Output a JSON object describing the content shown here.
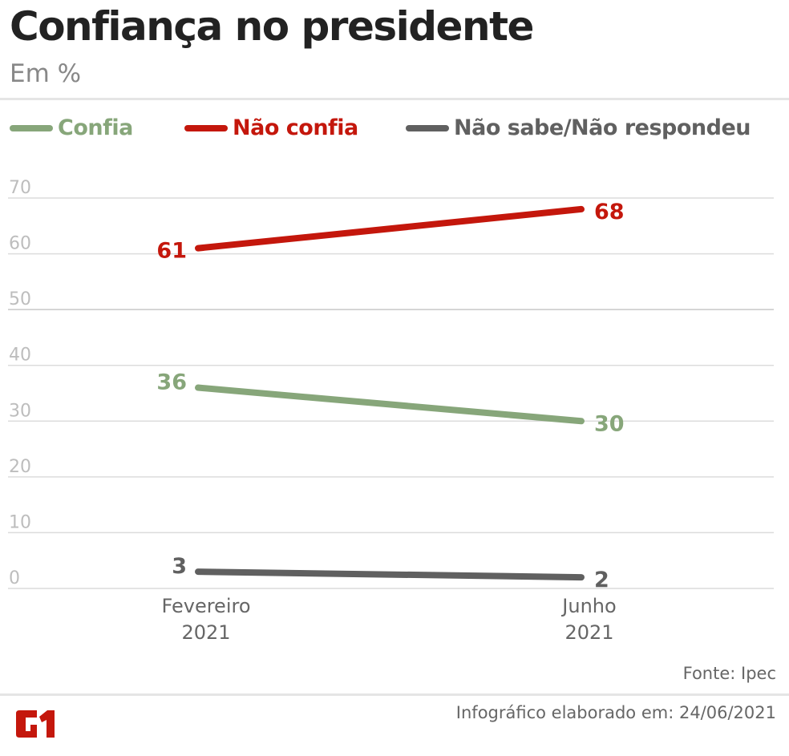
{
  "header": {
    "title": "Confiança no presidente",
    "subtitle": "Em %"
  },
  "colors": {
    "confia": "#87a67a",
    "nao_confia": "#c4170c",
    "nao_sabe": "#606060",
    "grid": "#dcdcdc",
    "tick_text": "#bdbdbd",
    "category_text": "#666666",
    "logo": "#c4170c"
  },
  "legend": [
    {
      "label": "Confia",
      "color": "#87a67a"
    },
    {
      "label": "Não confia",
      "color": "#c4170c"
    },
    {
      "label": "Não sabe/Não respondeu",
      "color": "#606060"
    }
  ],
  "chart_data": {
    "type": "line",
    "title": "Confiança no presidente",
    "subtitle": "Em %",
    "xlabel": "",
    "ylabel": "",
    "categories": [
      [
        "Fevereiro",
        "2021"
      ],
      [
        "Junho",
        "2021"
      ]
    ],
    "yticks": [
      0,
      10,
      20,
      30,
      40,
      50,
      60,
      70
    ],
    "ylim": [
      0,
      70
    ],
    "grid": true,
    "legend_position": "top-left",
    "series": [
      {
        "name": "Confia",
        "color": "#87a67a",
        "values": [
          36,
          30
        ]
      },
      {
        "name": "Não confia",
        "color": "#c4170c",
        "values": [
          61,
          68
        ]
      },
      {
        "name": "Não sabe/Não respondeu",
        "color": "#606060",
        "values": [
          3,
          2
        ]
      }
    ]
  },
  "footer": {
    "source": "Fonte: Ipec",
    "elaborated": "Infográfico elaborado em: 24/06/2021",
    "logo_text": "G1"
  }
}
